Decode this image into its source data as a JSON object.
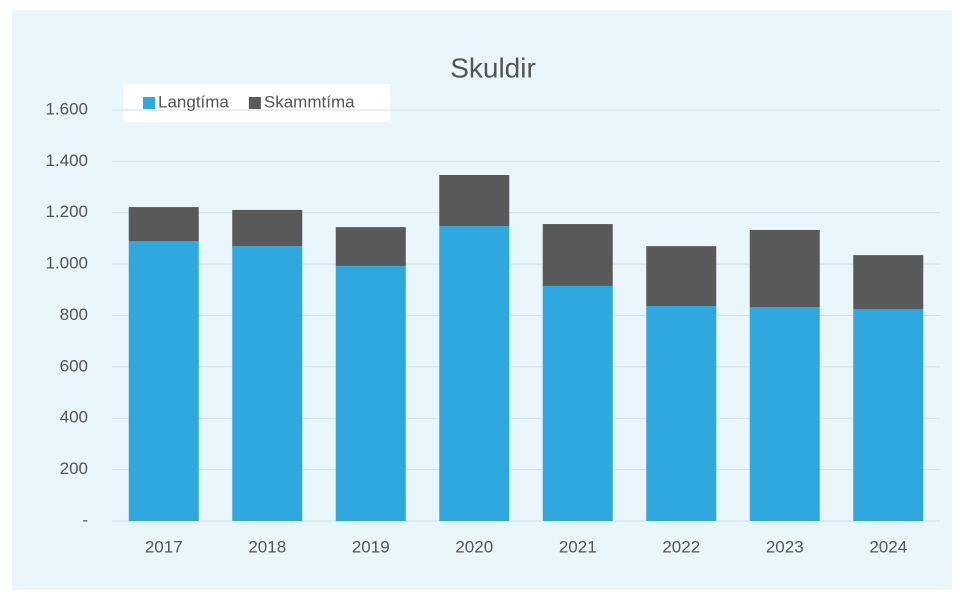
{
  "chart_data": {
    "type": "stacked_bar",
    "title": "Skuldir",
    "categories": [
      "2017",
      "2018",
      "2019",
      "2020",
      "2021",
      "2022",
      "2023",
      "2024"
    ],
    "series": [
      {
        "name": "Langtíma",
        "color": "#2ea8df",
        "values": [
          1090,
          1070,
          993,
          1148,
          915,
          837,
          833,
          825
        ]
      },
      {
        "name": "Skammtíma",
        "color": "#595959",
        "values": [
          132,
          141,
          151,
          199,
          241,
          233,
          300,
          210
        ]
      }
    ],
    "ylim": [
      0,
      1600
    ],
    "yticks": [
      {
        "value": 0,
        "label": "-"
      },
      200,
      400,
      600,
      800,
      {
        "value": 1000,
        "label": "1.000"
      },
      {
        "value": 1200,
        "label": "1.200"
      },
      {
        "value": 1400,
        "label": "1.400"
      },
      {
        "value": 1600,
        "label": "1.600"
      }
    ],
    "grid": true,
    "legend": "top-left"
  }
}
